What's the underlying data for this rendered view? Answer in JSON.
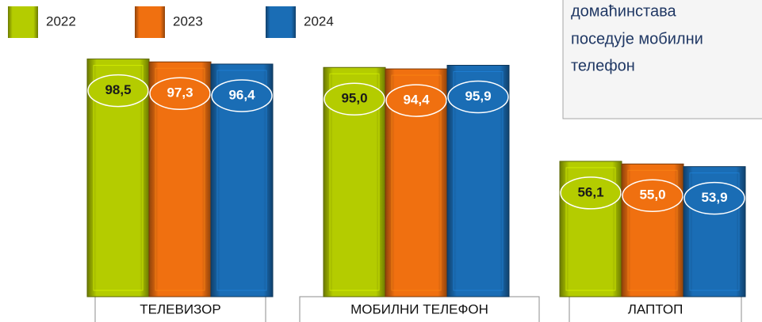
{
  "chart_data": {
    "type": "bar",
    "categories": [
      "ТЕЛЕВИЗОР",
      "МОБИЛНИ ТЕЛЕФОН",
      "ЛАПТОП"
    ],
    "series": [
      {
        "name": "2022",
        "color": "#b4cc00",
        "values": [
          98.5,
          95.0,
          56.1
        ],
        "value_labels": [
          "98,5",
          "95,0",
          "56,1"
        ]
      },
      {
        "name": "2023",
        "color": "#f07010",
        "values": [
          97.3,
          94.4,
          55.0
        ],
        "value_labels": [
          "97,3",
          "94,4",
          "55,0"
        ]
      },
      {
        "name": "2024",
        "color": "#1a6db5",
        "values": [
          96.4,
          95.9,
          53.9
        ],
        "value_labels": [
          "96,4",
          "95,9",
          "53,9"
        ]
      }
    ],
    "ylim": [
      0,
      100
    ],
    "legend": "top-left",
    "annotation": [
      "домаћинстава",
      "поседује мобилни",
      "телефон"
    ]
  }
}
